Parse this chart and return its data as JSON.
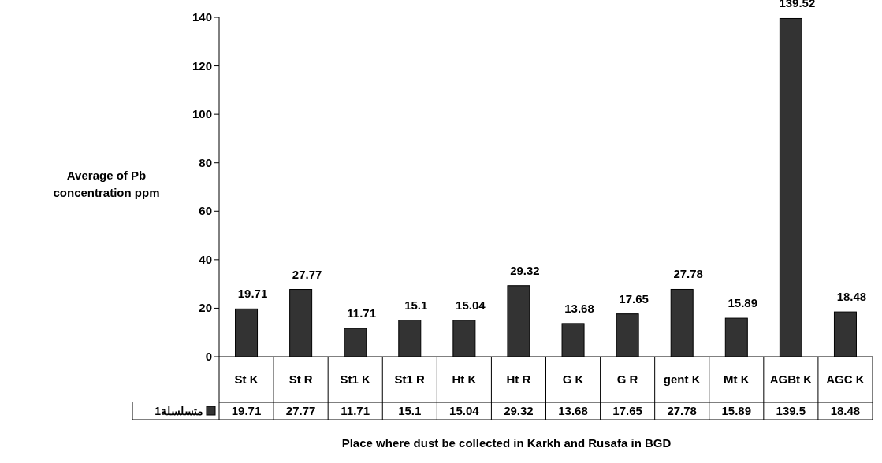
{
  "chart_data": {
    "type": "bar",
    "ylabel": "Average of Pb concentration ppm",
    "xlabel": "Place where dust be collected in Karkh and Rusafa in BGD",
    "categories": [
      "St K",
      "St R",
      "St1 K",
      "St1 R",
      "Ht K",
      "Ht R",
      "G K",
      "G R",
      "gent K",
      "Mt K",
      "AGBt K",
      "AGC K"
    ],
    "series": [
      {
        "name": "متسلسلة1",
        "color": "#333333",
        "values": [
          19.71,
          27.77,
          11.71,
          15.1,
          15.04,
          29.32,
          13.68,
          17.65,
          27.78,
          15.89,
          139.52,
          18.48
        ],
        "value_labels": [
          "19.71",
          "27.77",
          "11.71",
          "15.1",
          "15.04",
          "29.32",
          "13.68",
          "17.65",
          "27.78",
          "15.89",
          "139.52",
          "18.48"
        ]
      }
    ],
    "annotations": [
      "19.71",
      "27.77",
      "11.71",
      "15.1",
      "15.04",
      "29.32",
      "13.68",
      "17.65",
      "27.78",
      "15.89",
      "139.5",
      "18.48"
    ],
    "ylim": [
      0,
      140
    ],
    "yticks": [
      0,
      20,
      40,
      60,
      80,
      100,
      120,
      140
    ],
    "legend": "bottom left",
    "grid": false
  }
}
